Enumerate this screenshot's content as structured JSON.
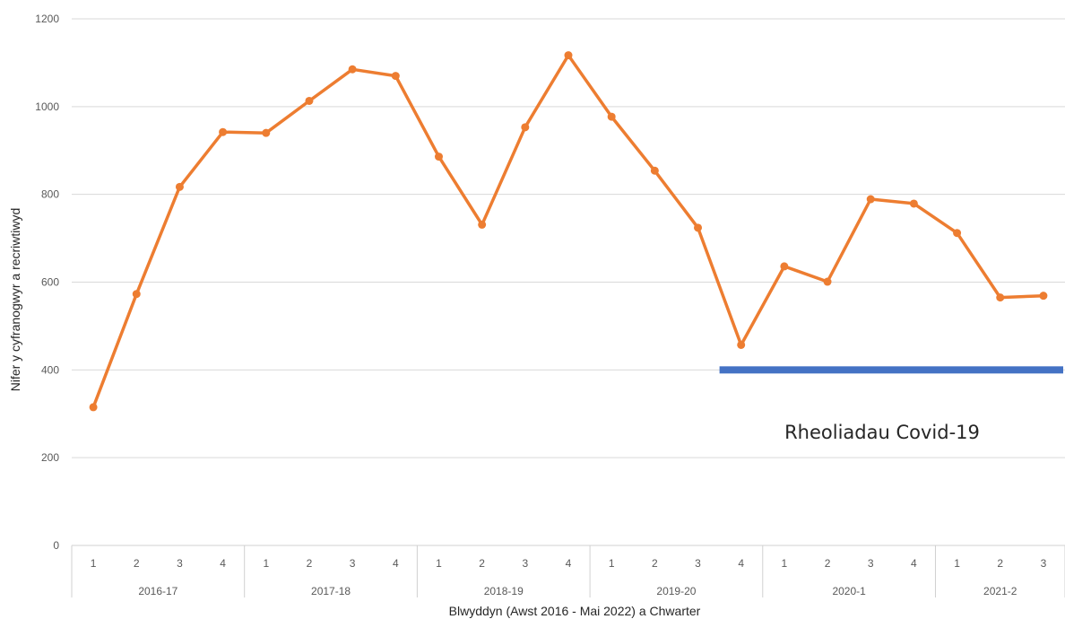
{
  "chart_data": {
    "type": "line",
    "title": "",
    "xlabel": "Blwyddyn (Awst 2016 - Mai 2022) a Chwarter",
    "ylabel": "Nifer y cyfranogwyr a recriwtiwyd",
    "ylim": [
      0,
      1200
    ],
    "yticks": [
      0,
      200,
      400,
      600,
      800,
      1000,
      1200
    ],
    "grid": true,
    "legend": "none",
    "groups": [
      {
        "label": "2016-17",
        "quarters": [
          "1",
          "2",
          "3",
          "4"
        ]
      },
      {
        "label": "2017-18",
        "quarters": [
          "1",
          "2",
          "3",
          "4"
        ]
      },
      {
        "label": "2018-19",
        "quarters": [
          "1",
          "2",
          "3",
          "4"
        ]
      },
      {
        "label": "2019-20",
        "quarters": [
          "1",
          "2",
          "3",
          "4"
        ]
      },
      {
        "label": "2020-1",
        "quarters": [
          "1",
          "2",
          "3",
          "4"
        ]
      },
      {
        "label": "2021-2",
        "quarters": [
          "1",
          "2",
          "3"
        ]
      }
    ],
    "series": [
      {
        "color": "#ED7D31",
        "values": [
          315,
          573,
          817,
          942,
          940,
          1013,
          1085,
          1070,
          886,
          731,
          953,
          1117,
          977,
          854,
          724,
          457,
          636,
          601,
          789,
          779,
          712,
          565,
          569
        ]
      }
    ],
    "annotation": {
      "text": "Rheoliadau Covid-19",
      "color": "#4472C4",
      "value": 400,
      "start_index": 14.5,
      "end_index": 22.5
    }
  }
}
